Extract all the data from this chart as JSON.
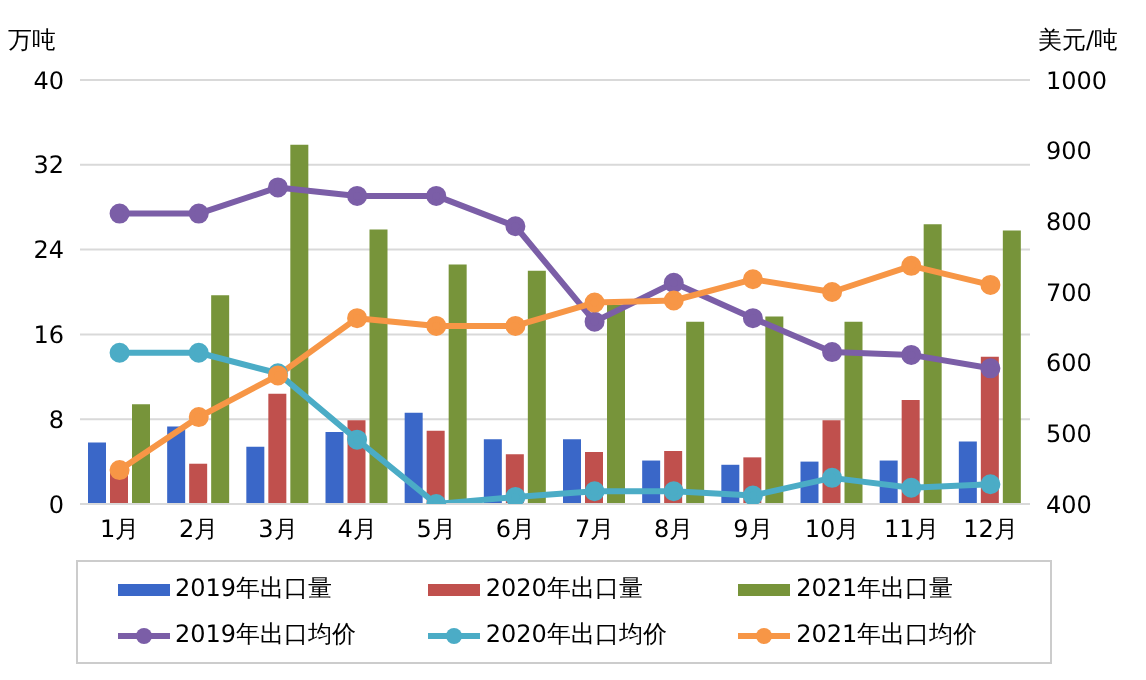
{
  "chart_data": {
    "type": "bar",
    "ylabel": "万吨",
    "y2label": "美元/吨",
    "categories": [
      "1月",
      "2月",
      "3月",
      "4月",
      "5月",
      "6月",
      "7月",
      "8月",
      "9月",
      "10月",
      "11月",
      "12月"
    ],
    "series": [
      {
        "name": "2019年出口量",
        "color": "#3a67c8",
        "values": [
          5.8,
          7.3,
          5.4,
          6.8,
          8.6,
          6.1,
          6.1,
          4.1,
          3.7,
          4.0,
          4.1,
          5.9
        ]
      },
      {
        "name": "2020年出口量",
        "color": "#c0504d",
        "values": [
          3.0,
          3.8,
          10.4,
          7.9,
          6.9,
          4.7,
          4.9,
          5.0,
          4.4,
          7.9,
          9.8,
          13.9
        ]
      },
      {
        "name": "2021年出口量",
        "color": "#77943a",
        "values": [
          9.4,
          19.7,
          33.9,
          25.9,
          22.6,
          22.0,
          18.8,
          17.2,
          17.7,
          17.2,
          26.4,
          25.8
        ]
      },
      {
        "name": "2019年出口均价",
        "type": "line",
        "axis": "y2",
        "color": "#7b5ea7",
        "values": [
          811,
          811,
          848,
          836,
          836,
          793,
          658,
          713,
          663,
          615,
          611,
          592
        ]
      },
      {
        "name": "2020年出口均价",
        "type": "line",
        "axis": "y2",
        "color": "#4bacc6",
        "values": [
          614,
          614,
          585,
          491,
          400,
          410,
          418,
          418,
          412,
          437,
          423,
          428
        ]
      },
      {
        "name": "2021年出口均价",
        "type": "line",
        "axis": "y2",
        "color": "#f79646",
        "values": [
          448,
          523,
          582,
          663,
          652,
          652,
          685,
          688,
          718,
          700,
          737,
          710
        ]
      }
    ],
    "ylim": [
      0,
      40
    ],
    "yticks": [
      0,
      8,
      16,
      24,
      32,
      40
    ],
    "y2lim": [
      400,
      1000
    ],
    "y2ticks": [
      400,
      500,
      600,
      700,
      800,
      900,
      1000
    ],
    "grid": "y",
    "legend": "bottom",
    "marker": "circle"
  }
}
